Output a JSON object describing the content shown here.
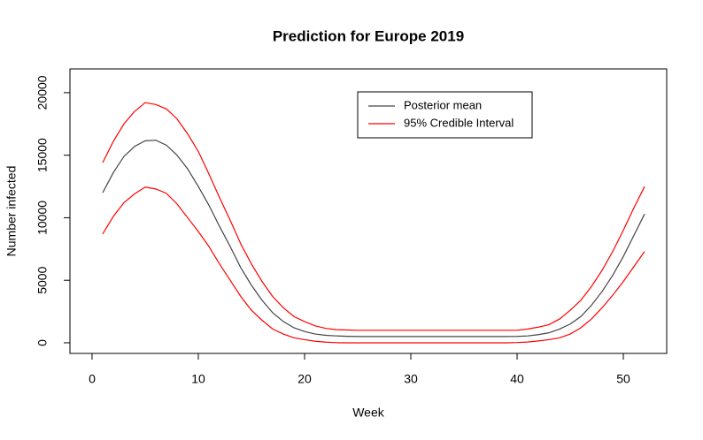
{
  "chart_data": {
    "type": "line",
    "title": "Prediction for Europe 2019",
    "xlabel": "Week",
    "ylabel": "Number infected",
    "x": [
      1,
      2,
      3,
      4,
      5,
      6,
      7,
      8,
      9,
      10,
      11,
      12,
      13,
      14,
      15,
      16,
      17,
      18,
      19,
      20,
      21,
      22,
      23,
      24,
      25,
      26,
      27,
      28,
      29,
      30,
      31,
      32,
      33,
      34,
      35,
      36,
      37,
      38,
      39,
      40,
      41,
      42,
      43,
      44,
      45,
      46,
      47,
      48,
      49,
      50,
      51,
      52
    ],
    "series": [
      {
        "name": "Posterior mean",
        "color": "#444444",
        "values": [
          12000,
          13600,
          14900,
          15700,
          16150,
          16200,
          15800,
          15000,
          13900,
          12500,
          11000,
          9300,
          7700,
          6000,
          4600,
          3400,
          2400,
          1700,
          1200,
          900,
          700,
          600,
          550,
          520,
          500,
          500,
          500,
          500,
          500,
          500,
          500,
          500,
          500,
          500,
          500,
          500,
          500,
          500,
          500,
          510,
          550,
          650,
          800,
          1100,
          1500,
          2100,
          3000,
          4100,
          5400,
          6900,
          8600,
          10300
        ]
      },
      {
        "name": "95% Credible Interval",
        "color": "#ff0000",
        "upper": [
          14400,
          16100,
          17500,
          18500,
          19200,
          19050,
          18700,
          17900,
          16700,
          15300,
          13500,
          11600,
          9800,
          7900,
          6300,
          4900,
          3700,
          2800,
          2100,
          1700,
          1350,
          1150,
          1050,
          1020,
          1000,
          1000,
          1000,
          1000,
          1000,
          1000,
          1000,
          1000,
          1000,
          1000,
          1000,
          1000,
          1000,
          1000,
          1000,
          1000,
          1100,
          1250,
          1450,
          1900,
          2600,
          3400,
          4500,
          5800,
          7300,
          9000,
          10800,
          12500
        ],
        "lower": [
          8700,
          10100,
          11200,
          11900,
          12450,
          12300,
          11950,
          11100,
          10000,
          8900,
          7700,
          6300,
          5000,
          3700,
          2600,
          1800,
          1100,
          700,
          400,
          250,
          120,
          50,
          10,
          0,
          0,
          0,
          0,
          0,
          0,
          0,
          0,
          0,
          0,
          0,
          0,
          0,
          0,
          0,
          0,
          20,
          60,
          150,
          250,
          400,
          700,
          1200,
          1900,
          2800,
          3800,
          4900,
          6100,
          7300
        ]
      }
    ],
    "xlim": [
      -2.08,
      54.08
    ],
    "ylim": [
      -850,
      21900
    ],
    "xticks": [
      0,
      10,
      20,
      30,
      40,
      50
    ],
    "yticks": [
      0,
      5000,
      10000,
      15000,
      20000
    ],
    "grid": false,
    "legend": "top"
  }
}
